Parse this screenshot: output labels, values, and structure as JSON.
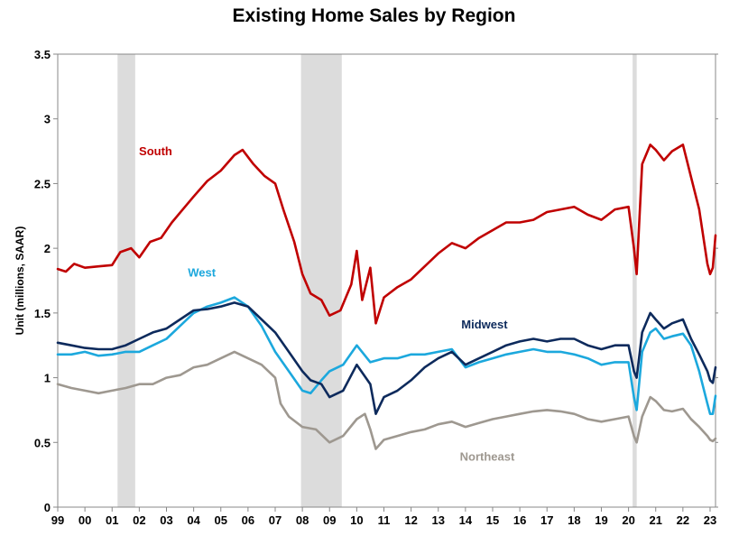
{
  "chart_data": {
    "type": "line",
    "title": "Existing Home Sales by Region",
    "ylabel": "Unit (millions, SAAR)",
    "xlabel": "",
    "ylim": [
      0,
      3.5
    ],
    "xlim": [
      1999.0,
      2023.2
    ],
    "yticks": [
      "0",
      "0.5",
      "1",
      "1.5",
      "2",
      "2.5",
      "3",
      "3.5"
    ],
    "xticks": [
      "99",
      "00",
      "01",
      "02",
      "03",
      "04",
      "05",
      "06",
      "07",
      "08",
      "09",
      "10",
      "11",
      "12",
      "13",
      "14",
      "15",
      "16",
      "17",
      "18",
      "19",
      "20",
      "21",
      "22",
      "23"
    ],
    "recessions": [
      [
        2001.2,
        2001.85
      ],
      [
        2007.95,
        2009.45
      ],
      [
        2020.15,
        2020.3
      ]
    ],
    "grid": false,
    "series": [
      {
        "name": "South",
        "color": "#c00000",
        "points": [
          [
            1999.0,
            1.84
          ],
          [
            1999.3,
            1.82
          ],
          [
            1999.6,
            1.88
          ],
          [
            2000.0,
            1.85
          ],
          [
            2000.5,
            1.86
          ],
          [
            2001.0,
            1.87
          ],
          [
            2001.3,
            1.97
          ],
          [
            2001.7,
            2.0
          ],
          [
            2002.0,
            1.93
          ],
          [
            2002.4,
            2.05
          ],
          [
            2002.8,
            2.08
          ],
          [
            2003.2,
            2.2
          ],
          [
            2003.6,
            2.3
          ],
          [
            2004.0,
            2.4
          ],
          [
            2004.5,
            2.52
          ],
          [
            2005.0,
            2.6
          ],
          [
            2005.5,
            2.72
          ],
          [
            2005.8,
            2.76
          ],
          [
            2006.2,
            2.65
          ],
          [
            2006.6,
            2.56
          ],
          [
            2007.0,
            2.5
          ],
          [
            2007.3,
            2.3
          ],
          [
            2007.7,
            2.05
          ],
          [
            2008.0,
            1.8
          ],
          [
            2008.3,
            1.65
          ],
          [
            2008.7,
            1.6
          ],
          [
            2009.0,
            1.48
          ],
          [
            2009.4,
            1.52
          ],
          [
            2009.8,
            1.72
          ],
          [
            2010.0,
            1.98
          ],
          [
            2010.2,
            1.6
          ],
          [
            2010.5,
            1.85
          ],
          [
            2010.7,
            1.42
          ],
          [
            2011.0,
            1.62
          ],
          [
            2011.5,
            1.7
          ],
          [
            2012.0,
            1.76
          ],
          [
            2012.5,
            1.86
          ],
          [
            2013.0,
            1.96
          ],
          [
            2013.5,
            2.04
          ],
          [
            2014.0,
            2.0
          ],
          [
            2014.5,
            2.08
          ],
          [
            2015.0,
            2.14
          ],
          [
            2015.5,
            2.2
          ],
          [
            2016.0,
            2.2
          ],
          [
            2016.5,
            2.22
          ],
          [
            2017.0,
            2.28
          ],
          [
            2017.5,
            2.3
          ],
          [
            2018.0,
            2.32
          ],
          [
            2018.5,
            2.26
          ],
          [
            2019.0,
            2.22
          ],
          [
            2019.5,
            2.3
          ],
          [
            2020.0,
            2.32
          ],
          [
            2020.2,
            2.0
          ],
          [
            2020.3,
            1.8
          ],
          [
            2020.5,
            2.65
          ],
          [
            2020.8,
            2.8
          ],
          [
            2021.0,
            2.76
          ],
          [
            2021.3,
            2.68
          ],
          [
            2021.6,
            2.75
          ],
          [
            2022.0,
            2.8
          ],
          [
            2022.3,
            2.55
          ],
          [
            2022.6,
            2.3
          ],
          [
            2022.9,
            1.88
          ],
          [
            2023.0,
            1.8
          ],
          [
            2023.1,
            1.85
          ],
          [
            2023.2,
            2.1
          ]
        ]
      },
      {
        "name": "West",
        "color": "#1ca8dd",
        "points": [
          [
            1999.0,
            1.18
          ],
          [
            1999.5,
            1.18
          ],
          [
            2000.0,
            1.2
          ],
          [
            2000.5,
            1.17
          ],
          [
            2001.0,
            1.18
          ],
          [
            2001.5,
            1.2
          ],
          [
            2002.0,
            1.2
          ],
          [
            2002.5,
            1.25
          ],
          [
            2003.0,
            1.3
          ],
          [
            2003.5,
            1.4
          ],
          [
            2004.0,
            1.5
          ],
          [
            2004.5,
            1.55
          ],
          [
            2005.0,
            1.58
          ],
          [
            2005.5,
            1.62
          ],
          [
            2006.0,
            1.55
          ],
          [
            2006.5,
            1.4
          ],
          [
            2007.0,
            1.2
          ],
          [
            2007.5,
            1.05
          ],
          [
            2008.0,
            0.9
          ],
          [
            2008.3,
            0.88
          ],
          [
            2008.7,
            0.98
          ],
          [
            2009.0,
            1.05
          ],
          [
            2009.5,
            1.1
          ],
          [
            2010.0,
            1.25
          ],
          [
            2010.5,
            1.12
          ],
          [
            2011.0,
            1.15
          ],
          [
            2011.5,
            1.15
          ],
          [
            2012.0,
            1.18
          ],
          [
            2012.5,
            1.18
          ],
          [
            2013.0,
            1.2
          ],
          [
            2013.5,
            1.22
          ],
          [
            2014.0,
            1.08
          ],
          [
            2014.5,
            1.12
          ],
          [
            2015.0,
            1.15
          ],
          [
            2015.5,
            1.18
          ],
          [
            2016.0,
            1.2
          ],
          [
            2016.5,
            1.22
          ],
          [
            2017.0,
            1.2
          ],
          [
            2017.5,
            1.2
          ],
          [
            2018.0,
            1.18
          ],
          [
            2018.5,
            1.15
          ],
          [
            2019.0,
            1.1
          ],
          [
            2019.5,
            1.12
          ],
          [
            2020.0,
            1.12
          ],
          [
            2020.2,
            0.85
          ],
          [
            2020.3,
            0.75
          ],
          [
            2020.5,
            1.2
          ],
          [
            2020.8,
            1.35
          ],
          [
            2021.0,
            1.38
          ],
          [
            2021.3,
            1.3
          ],
          [
            2021.6,
            1.32
          ],
          [
            2022.0,
            1.34
          ],
          [
            2022.3,
            1.25
          ],
          [
            2022.6,
            1.05
          ],
          [
            2022.9,
            0.8
          ],
          [
            2023.0,
            0.72
          ],
          [
            2023.1,
            0.72
          ],
          [
            2023.2,
            0.86
          ]
        ]
      },
      {
        "name": "Midwest",
        "color": "#0d2a5c",
        "points": [
          [
            1999.0,
            1.27
          ],
          [
            1999.5,
            1.25
          ],
          [
            2000.0,
            1.23
          ],
          [
            2000.5,
            1.22
          ],
          [
            2001.0,
            1.22
          ],
          [
            2001.5,
            1.25
          ],
          [
            2002.0,
            1.3
          ],
          [
            2002.5,
            1.35
          ],
          [
            2003.0,
            1.38
          ],
          [
            2003.5,
            1.45
          ],
          [
            2004.0,
            1.52
          ],
          [
            2004.5,
            1.53
          ],
          [
            2005.0,
            1.55
          ],
          [
            2005.5,
            1.58
          ],
          [
            2006.0,
            1.55
          ],
          [
            2006.5,
            1.45
          ],
          [
            2007.0,
            1.35
          ],
          [
            2007.5,
            1.2
          ],
          [
            2008.0,
            1.05
          ],
          [
            2008.3,
            0.98
          ],
          [
            2008.7,
            0.95
          ],
          [
            2009.0,
            0.85
          ],
          [
            2009.5,
            0.9
          ],
          [
            2010.0,
            1.1
          ],
          [
            2010.5,
            0.95
          ],
          [
            2010.7,
            0.72
          ],
          [
            2011.0,
            0.85
          ],
          [
            2011.5,
            0.9
          ],
          [
            2012.0,
            0.98
          ],
          [
            2012.5,
            1.08
          ],
          [
            2013.0,
            1.15
          ],
          [
            2013.5,
            1.2
          ],
          [
            2014.0,
            1.1
          ],
          [
            2014.5,
            1.15
          ],
          [
            2015.0,
            1.2
          ],
          [
            2015.5,
            1.25
          ],
          [
            2016.0,
            1.28
          ],
          [
            2016.5,
            1.3
          ],
          [
            2017.0,
            1.28
          ],
          [
            2017.5,
            1.3
          ],
          [
            2018.0,
            1.3
          ],
          [
            2018.5,
            1.25
          ],
          [
            2019.0,
            1.22
          ],
          [
            2019.5,
            1.25
          ],
          [
            2020.0,
            1.25
          ],
          [
            2020.2,
            1.05
          ],
          [
            2020.3,
            1.0
          ],
          [
            2020.5,
            1.35
          ],
          [
            2020.8,
            1.5
          ],
          [
            2021.0,
            1.45
          ],
          [
            2021.3,
            1.38
          ],
          [
            2021.6,
            1.42
          ],
          [
            2022.0,
            1.45
          ],
          [
            2022.3,
            1.3
          ],
          [
            2022.6,
            1.18
          ],
          [
            2022.9,
            1.05
          ],
          [
            2023.0,
            0.98
          ],
          [
            2023.1,
            0.96
          ],
          [
            2023.2,
            1.08
          ]
        ]
      },
      {
        "name": "Northeast",
        "color": "#9e9890",
        "points": [
          [
            1999.0,
            0.95
          ],
          [
            1999.5,
            0.92
          ],
          [
            2000.0,
            0.9
          ],
          [
            2000.5,
            0.88
          ],
          [
            2001.0,
            0.9
          ],
          [
            2001.5,
            0.92
          ],
          [
            2002.0,
            0.95
          ],
          [
            2002.5,
            0.95
          ],
          [
            2003.0,
            1.0
          ],
          [
            2003.5,
            1.02
          ],
          [
            2004.0,
            1.08
          ],
          [
            2004.5,
            1.1
          ],
          [
            2005.0,
            1.15
          ],
          [
            2005.5,
            1.2
          ],
          [
            2006.0,
            1.15
          ],
          [
            2006.5,
            1.1
          ],
          [
            2007.0,
            1.0
          ],
          [
            2007.2,
            0.8
          ],
          [
            2007.5,
            0.7
          ],
          [
            2008.0,
            0.62
          ],
          [
            2008.5,
            0.6
          ],
          [
            2009.0,
            0.5
          ],
          [
            2009.5,
            0.55
          ],
          [
            2010.0,
            0.68
          ],
          [
            2010.3,
            0.72
          ],
          [
            2010.5,
            0.6
          ],
          [
            2010.7,
            0.45
          ],
          [
            2011.0,
            0.52
          ],
          [
            2011.5,
            0.55
          ],
          [
            2012.0,
            0.58
          ],
          [
            2012.5,
            0.6
          ],
          [
            2013.0,
            0.64
          ],
          [
            2013.5,
            0.66
          ],
          [
            2014.0,
            0.62
          ],
          [
            2014.5,
            0.65
          ],
          [
            2015.0,
            0.68
          ],
          [
            2015.5,
            0.7
          ],
          [
            2016.0,
            0.72
          ],
          [
            2016.5,
            0.74
          ],
          [
            2017.0,
            0.75
          ],
          [
            2017.5,
            0.74
          ],
          [
            2018.0,
            0.72
          ],
          [
            2018.5,
            0.68
          ],
          [
            2019.0,
            0.66
          ],
          [
            2019.5,
            0.68
          ],
          [
            2020.0,
            0.7
          ],
          [
            2020.2,
            0.55
          ],
          [
            2020.3,
            0.5
          ],
          [
            2020.5,
            0.7
          ],
          [
            2020.8,
            0.85
          ],
          [
            2021.0,
            0.82
          ],
          [
            2021.3,
            0.75
          ],
          [
            2021.6,
            0.74
          ],
          [
            2022.0,
            0.76
          ],
          [
            2022.3,
            0.68
          ],
          [
            2022.6,
            0.62
          ],
          [
            2022.9,
            0.55
          ],
          [
            2023.0,
            0.52
          ],
          [
            2023.1,
            0.51
          ],
          [
            2023.2,
            0.53
          ]
        ]
      }
    ],
    "series_labels": [
      {
        "series": "South",
        "text": "South",
        "x": 2002.6,
        "y": 2.72
      },
      {
        "series": "West",
        "text": "West",
        "x": 2004.3,
        "y": 1.78
      },
      {
        "series": "Midwest",
        "text": "Midwest",
        "x": 2014.7,
        "y": 1.38
      },
      {
        "series": "Northeast",
        "text": "Northeast",
        "x": 2014.8,
        "y": 0.36
      }
    ]
  }
}
